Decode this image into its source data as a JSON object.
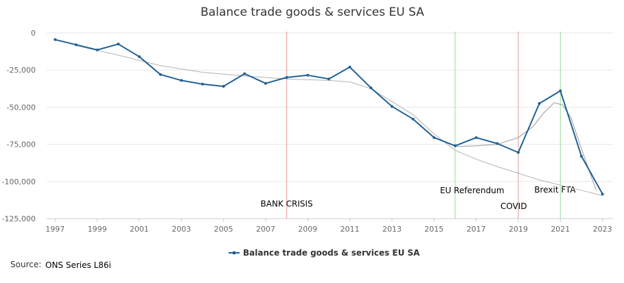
{
  "chart_data": {
    "type": "line",
    "title": "Balance trade goods & services EU SA",
    "xlabel": "",
    "ylabel": "",
    "xlim": [
      1996.6,
      2023.5
    ],
    "ylim": [
      -125000,
      0
    ],
    "y_ticks": [
      0,
      -25000,
      -50000,
      -75000,
      -100000,
      -125000
    ],
    "y_tick_labels": [
      "0",
      "-25,000",
      "-50,000",
      "-75,000",
      "-100,000",
      "-125,000"
    ],
    "x_ticks": [
      1997,
      1999,
      2001,
      2003,
      2005,
      2007,
      2009,
      2011,
      2013,
      2015,
      2017,
      2019,
      2021,
      2023
    ],
    "x_tick_labels": [
      "1997",
      "1999",
      "2001",
      "2003",
      "2005",
      "2007",
      "2009",
      "2011",
      "2013",
      "2015",
      "2017",
      "2019",
      "2021",
      "2023"
    ],
    "grid": true,
    "legend_position": "bottom-center",
    "series": [
      {
        "name": "Balance trade goods & services EU SA",
        "color": "#206095",
        "x": [
          1997,
          1998,
          1999,
          2000,
          2001,
          2002,
          2003,
          2004,
          2005,
          2006,
          2007,
          2008,
          2009,
          2010,
          2011,
          2012,
          2013,
          2014,
          2015,
          2016,
          2017,
          2018,
          2019,
          2020,
          2021,
          2022,
          2023
        ],
        "values": [
          -4500,
          -8000,
          -11500,
          -7500,
          -16000,
          -28000,
          -32000,
          -34500,
          -36000,
          -27500,
          -34000,
          -30000,
          -28500,
          -31000,
          -23000,
          -37000,
          -49500,
          -58000,
          -70500,
          -76000,
          -70500,
          -74500,
          -80500,
          -47500,
          -39000,
          -83000,
          -108500
        ]
      }
    ],
    "trend_lines": [
      {
        "color": "#b3b3b3",
        "x": [
          1998,
          2000,
          2002,
          2004,
          2006,
          2008,
          2010,
          2011,
          2012,
          2014,
          2015,
          2016,
          2017,
          2018,
          2019,
          2020,
          2021,
          2022,
          2023
        ],
        "values": [
          -8500,
          -15000,
          -22000,
          -26500,
          -29000,
          -31000,
          -32000,
          -33000,
          -37500,
          -55000,
          -68000,
          -79000,
          -85000,
          -90000,
          -94500,
          -99000,
          -102500,
          -106000,
          -109500
        ]
      },
      {
        "color": "#9a9a9a",
        "x": [
          2016,
          2017,
          2018,
          2019,
          2019.7,
          2020.2,
          2020.7,
          2021.1,
          2021.5,
          2022,
          2022.7
        ],
        "values": [
          -76500,
          -76000,
          -75000,
          -70500,
          -63000,
          -54000,
          -47000,
          -48500,
          -57000,
          -78000,
          -106000
        ]
      }
    ],
    "events": [
      {
        "x": 2008,
        "label": "BANK CRISIS",
        "color": "#e8a8a8",
        "label_y": -117000,
        "anchor": "middle"
      },
      {
        "x": 2016,
        "label": "EU Referendum",
        "color": "#a8e2a8",
        "label_y": -108000,
        "anchor": "start"
      },
      {
        "x": 2019,
        "label": "COVID",
        "color": "#e8a8a8",
        "label_y": -118500,
        "anchor": "start"
      },
      {
        "x": 2021,
        "label": "Brexit FTA",
        "color": "#a8e2a8",
        "label_y": -107500,
        "anchor": "start"
      }
    ],
    "legend": [
      {
        "name": "Balance trade goods & services EU SA",
        "color": "#206095"
      }
    ],
    "source_label": "Source:",
    "source_value": "ONS Series L86i"
  }
}
